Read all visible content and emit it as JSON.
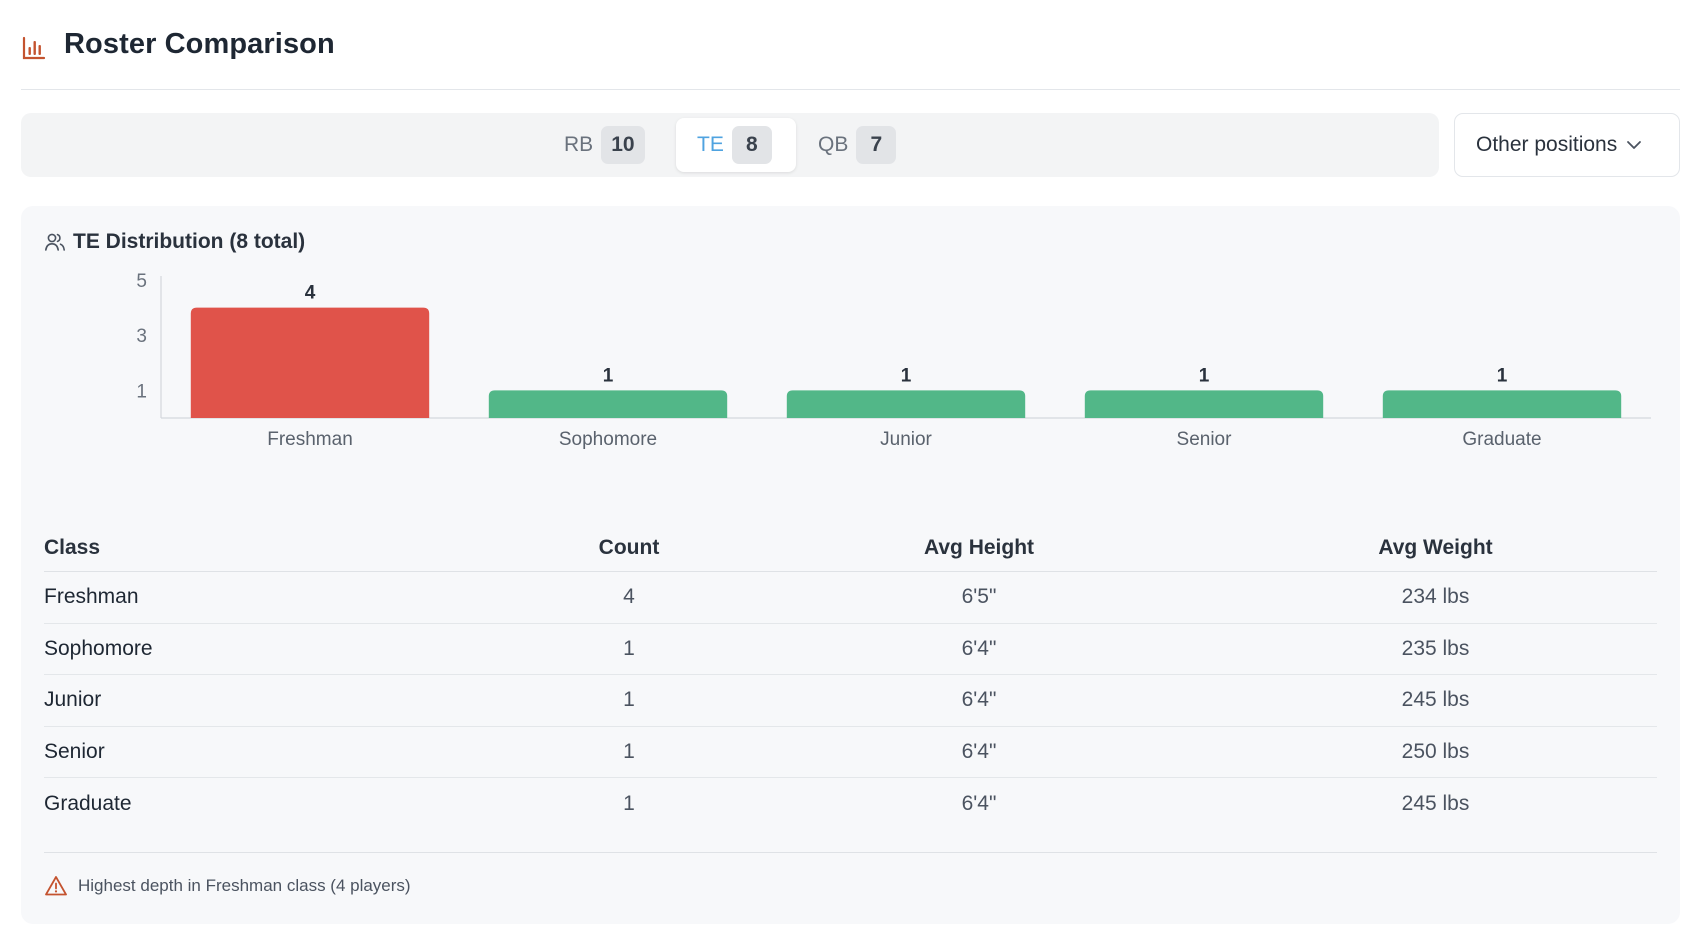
{
  "header": {
    "title": "Roster Comparison",
    "icon": "bar-chart-icon",
    "accent": "#c4532f"
  },
  "tabs": [
    {
      "label": "RB",
      "count": "10",
      "active": false
    },
    {
      "label": "TE",
      "count": "8",
      "active": true
    },
    {
      "label": "QB",
      "count": "7",
      "active": false
    }
  ],
  "dropdown": {
    "label": "Other positions",
    "icon": "chevron-down-icon"
  },
  "card": {
    "title": "TE Distribution (8 total)",
    "icon": "users-icon"
  },
  "chart_data": {
    "type": "bar",
    "categories": [
      "Freshman",
      "Sophomore",
      "Junior",
      "Senior",
      "Graduate"
    ],
    "values": [
      4,
      1,
      1,
      1,
      1
    ],
    "yticks": [
      1,
      3,
      5
    ],
    "ylim": [
      0,
      5
    ],
    "title": "",
    "xlabel": "",
    "ylabel": "",
    "grid": false,
    "highlight_color": "#e0534a",
    "bar_color": "#52b788"
  },
  "table": {
    "headers": {
      "class": "Class",
      "count": "Count",
      "height": "Avg Height",
      "weight": "Avg Weight"
    },
    "rows": [
      {
        "class": "Freshman",
        "count": "4",
        "height": "6'5\"",
        "weight": "234 lbs"
      },
      {
        "class": "Sophomore",
        "count": "1",
        "height": "6'4\"",
        "weight": "235 lbs"
      },
      {
        "class": "Junior",
        "count": "1",
        "height": "6'4\"",
        "weight": "245 lbs"
      },
      {
        "class": "Senior",
        "count": "1",
        "height": "6'4\"",
        "weight": "250 lbs"
      },
      {
        "class": "Graduate",
        "count": "1",
        "height": "6'4\"",
        "weight": "245 lbs"
      }
    ]
  },
  "note": {
    "text": "Highest depth in Freshman class (4 players)",
    "icon": "warning-icon",
    "color": "#c4532f"
  }
}
